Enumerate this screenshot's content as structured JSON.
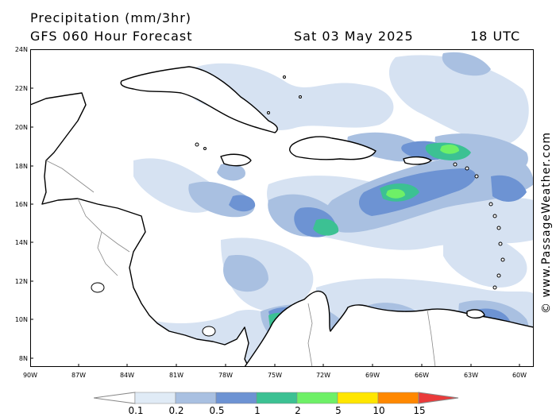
{
  "header": {
    "title": "Precipitation (mm/3hr)",
    "subtitle": "GFS 060 Hour Forecast",
    "date": "Sat 03 May 2025",
    "time": "18 UTC"
  },
  "credit": "© www.PassageWeather.com",
  "axes": {
    "lat_labels": [
      "24N",
      "22N",
      "20N",
      "18N",
      "16N",
      "14N",
      "12N",
      "10N",
      "8N"
    ],
    "lon_labels": [
      "90W",
      "87W",
      "84W",
      "81W",
      "78W",
      "75W",
      "72W",
      "69W",
      "66W",
      "63W",
      "60W"
    ]
  },
  "colorbar": {
    "labels": [
      "0.1",
      "0.2",
      "0.5",
      "1",
      "2",
      "5",
      "10",
      "15"
    ],
    "colors": [
      "#ffffff",
      "#e0ebf6",
      "#a9c0e1",
      "#6d93d3",
      "#3cc193",
      "#6ef067",
      "#ffe600",
      "#ff8800",
      "#ea3a3a"
    ]
  },
  "map_colors": {
    "land": "#ffffff",
    "light_precip": "#d6e2f2",
    "medium_precip": "#a9c0e1",
    "blue_precip": "#6d93d3",
    "teal_precip": "#3cc193",
    "green_precip": "#6ef067",
    "coastline": "#000000",
    "border": "#888888"
  }
}
